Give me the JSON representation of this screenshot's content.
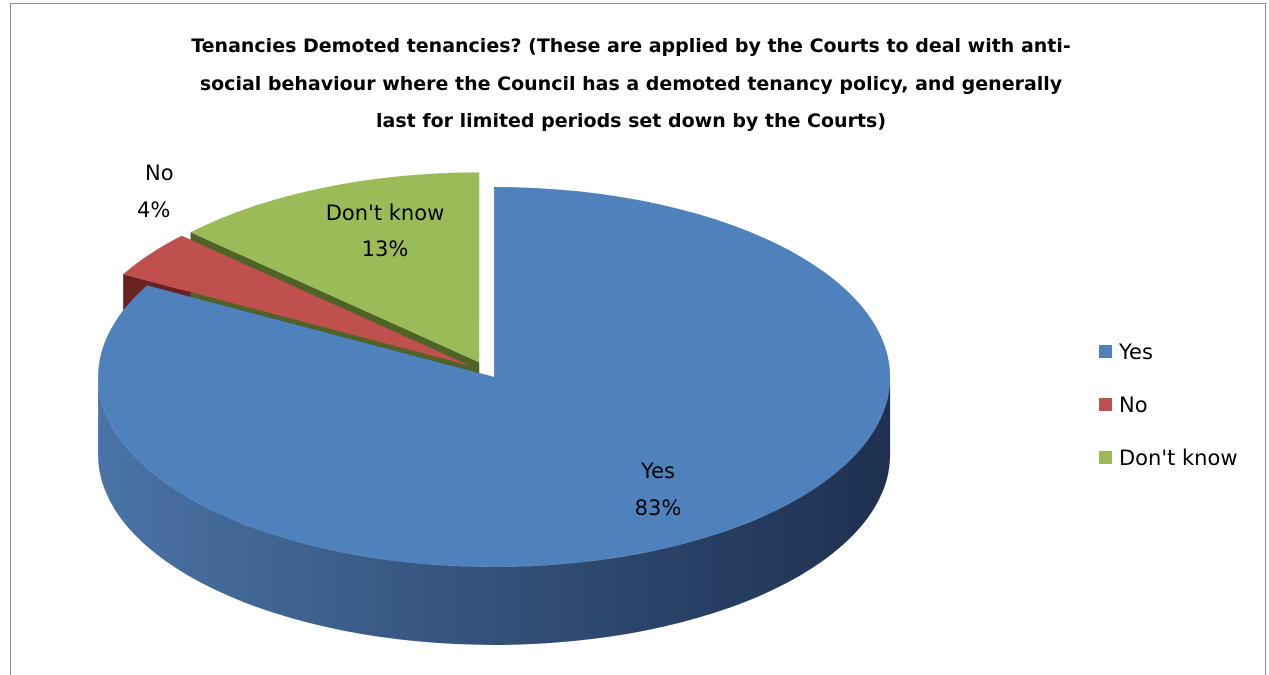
{
  "chart_data": {
    "type": "pie",
    "title_lines": [
      "Tenancies Demoted tenancies? (These are applied by the Courts to deal with anti-",
      "social behaviour where the Council has a demoted tenancy policy, and generally",
      "last for limited periods set down by the Courts)"
    ],
    "slices": [
      {
        "label": "Yes",
        "value": 83,
        "value_label": "83%",
        "color": "#4F81BD",
        "dark": "#1F3050",
        "light": "#4A73A6"
      },
      {
        "label": "No",
        "value": 4,
        "value_label": "4%",
        "color": "#C0504D",
        "dark": "#6A2220",
        "light": "#9E3F3D"
      },
      {
        "label": "Don't know",
        "value": 13,
        "value_label": "13%",
        "color": "#9BBB59",
        "dark": "#4E6325",
        "light": "#7F9A48"
      }
    ],
    "legend": {
      "position": "right",
      "items": [
        "Yes",
        "No",
        "Don't know"
      ]
    },
    "style": "3d-exploded"
  }
}
